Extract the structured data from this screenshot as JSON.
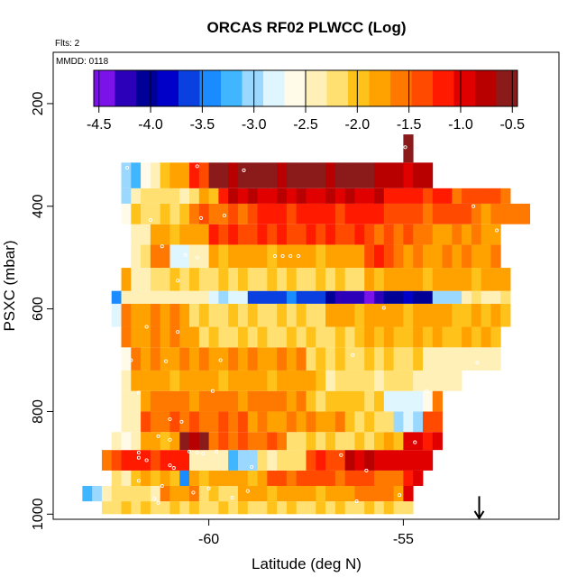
{
  "chart_data": {
    "type": "heatmap",
    "title": "ORCAS RF02 PLWCC (Log)",
    "flights_label": "Flts: 2",
    "date_label": "MMDD: 0118",
    "xlabel": "Latitude (deg N)",
    "ylabel": "PSXC (mbar)",
    "xlim": [
      -64.0,
      -51.0
    ],
    "ylim": [
      1010,
      100
    ],
    "x_ticks": [
      -60,
      -55
    ],
    "x_tick_labels": [
      "-60",
      "-55"
    ],
    "y_ticks": [
      200,
      400,
      600,
      800,
      1000
    ],
    "y_tick_labels": [
      "200",
      "400",
      "600",
      "800",
      "1000"
    ],
    "colorbar": {
      "range": [
        -4.55,
        -0.45
      ],
      "ticks": [
        -4.5,
        -4.0,
        -3.5,
        -3.0,
        -2.5,
        -2.0,
        -1.5,
        -1.0,
        -0.5
      ],
      "tick_labels": [
        "-4.5",
        "-4.0",
        "-3.5",
        "-3.0",
        "-2.5",
        "-2.0",
        "-1.5",
        "-1.0",
        "-0.5"
      ],
      "colors": [
        "#7b12ea",
        "#2b00b8",
        "#000096",
        "#0000c8",
        "#0a3fe0",
        "#1a8cff",
        "#3fb6ff",
        "#9ad8ff",
        "#e0f6ff",
        "#fffbe8",
        "#fff0b8",
        "#ffe070",
        "#ffc21a",
        "#ffa200",
        "#ff7800",
        "#ff4a00",
        "#ff1a00",
        "#e00000",
        "#b80000",
        "#8b1a1a"
      ]
    },
    "cell_width_deg": 0.25,
    "rows": [
      {
        "p_bottom": 1000,
        "p_top": 975,
        "segments": [
          {
            "x0": -62.75,
            "x1": -54.75,
            "v": -2.1
          }
        ]
      },
      {
        "p_bottom": 975,
        "p_top": 945,
        "segments": [
          {
            "x0": -63.25,
            "x1": -62.75,
            "v": -3.2
          },
          {
            "x0": -62.75,
            "x1": -61.25,
            "v": -2.2
          },
          {
            "x0": -61.25,
            "x1": -60.25,
            "v": -1.7
          },
          {
            "x0": -60.25,
            "x1": -59.25,
            "v": -2.1
          },
          {
            "x0": -59.25,
            "x1": -56.25,
            "v": -1.8
          },
          {
            "x0": -56.25,
            "x1": -55.0,
            "v": -1.6
          },
          {
            "x0": -55.0,
            "x1": -54.75,
            "v": -0.9
          }
        ]
      },
      {
        "p_bottom": 945,
        "p_top": 915,
        "segments": [
          {
            "x0": -62.5,
            "x1": -62.0,
            "v": -2.3
          },
          {
            "x0": -62.0,
            "x1": -60.75,
            "v": -1.9
          },
          {
            "x0": -60.75,
            "x1": -60.5,
            "v": -3.4
          },
          {
            "x0": -60.5,
            "x1": -58.5,
            "v": -1.8
          },
          {
            "x0": -58.5,
            "x1": -55.75,
            "v": -1.4
          },
          {
            "x0": -55.75,
            "x1": -55.0,
            "v": -1.6
          },
          {
            "x0": -55.0,
            "x1": -54.5,
            "v": -1.1
          }
        ]
      },
      {
        "p_bottom": 915,
        "p_top": 875,
        "segments": [
          {
            "x0": -62.75,
            "x1": -62.25,
            "v": -1.5
          },
          {
            "x0": -62.25,
            "x1": -60.5,
            "v": -1.2
          },
          {
            "x0": -60.5,
            "x1": -59.5,
            "v": -2.4
          },
          {
            "x0": -59.5,
            "x1": -58.75,
            "v": -3.1
          },
          {
            "x0": -58.75,
            "x1": -57.5,
            "v": -2.2
          },
          {
            "x0": -57.5,
            "x1": -56.5,
            "v": -1.3
          },
          {
            "x0": -56.5,
            "x1": -55.25,
            "v": -0.9
          },
          {
            "x0": -55.25,
            "x1": -54.25,
            "v": -1.0
          }
        ]
      },
      {
        "p_bottom": 875,
        "p_top": 840,
        "segments": [
          {
            "x0": -62.5,
            "x1": -61.75,
            "v": -2.5
          },
          {
            "x0": -61.75,
            "x1": -60.75,
            "v": -1.8
          },
          {
            "x0": -60.75,
            "x1": -60.0,
            "v": -0.7
          },
          {
            "x0": -60.0,
            "x1": -58.0,
            "v": -1.5
          },
          {
            "x0": -58.0,
            "x1": -55.5,
            "v": -2.1
          },
          {
            "x0": -55.5,
            "x1": -55.0,
            "v": -1.9
          },
          {
            "x0": -55.0,
            "x1": -54.0,
            "v": -1.0
          }
        ]
      },
      {
        "p_bottom": 840,
        "p_top": 800,
        "segments": [
          {
            "x0": -62.25,
            "x1": -61.75,
            "v": -2.4
          },
          {
            "x0": -61.75,
            "x1": -59.0,
            "v": -1.5
          },
          {
            "x0": -59.0,
            "x1": -56.5,
            "v": -1.7
          },
          {
            "x0": -56.5,
            "x1": -55.25,
            "v": -2.1
          },
          {
            "x0": -55.25,
            "x1": -54.5,
            "v": -3.0
          },
          {
            "x0": -54.5,
            "x1": -54.0,
            "v": -1.3
          }
        ]
      },
      {
        "p_bottom": 800,
        "p_top": 760,
        "segments": [
          {
            "x0": -62.25,
            "x1": -61.75,
            "v": -2.5
          },
          {
            "x0": -61.75,
            "x1": -57.5,
            "v": -1.6
          },
          {
            "x0": -57.5,
            "x1": -55.5,
            "v": -2.0
          },
          {
            "x0": -55.5,
            "x1": -54.25,
            "v": -2.8
          },
          {
            "x0": -54.25,
            "x1": -54.0,
            "v": -1.7
          }
        ]
      },
      {
        "p_bottom": 760,
        "p_top": 720,
        "segments": [
          {
            "x0": -62.25,
            "x1": -62.0,
            "v": -2.4
          },
          {
            "x0": -62.0,
            "x1": -57.0,
            "v": -1.8
          },
          {
            "x0": -57.0,
            "x1": -54.75,
            "v": -2.2
          },
          {
            "x0": -54.75,
            "x1": -53.5,
            "v": -2.4
          }
        ]
      },
      {
        "p_bottom": 720,
        "p_top": 675,
        "segments": [
          {
            "x0": -62.25,
            "x1": -62.0,
            "v": -2.6
          },
          {
            "x0": -62.0,
            "x1": -57.5,
            "v": -1.7
          },
          {
            "x0": -57.5,
            "x1": -54.5,
            "v": -2.1
          },
          {
            "x0": -54.5,
            "x1": -52.5,
            "v": -2.4
          }
        ]
      },
      {
        "p_bottom": 675,
        "p_top": 635,
        "segments": [
          {
            "x0": -62.25,
            "x1": -60.25,
            "v": -1.7
          },
          {
            "x0": -60.25,
            "x1": -56.0,
            "v": -2.1
          },
          {
            "x0": -56.0,
            "x1": -52.5,
            "v": -1.9
          }
        ]
      },
      {
        "p_bottom": 635,
        "p_top": 590,
        "segments": [
          {
            "x0": -62.5,
            "x1": -62.25,
            "v": -2.8
          },
          {
            "x0": -62.25,
            "x1": -60.5,
            "v": -1.7
          },
          {
            "x0": -60.5,
            "x1": -57.0,
            "v": -2.1
          },
          {
            "x0": -57.0,
            "x1": -53.5,
            "v": -1.8
          },
          {
            "x0": -53.5,
            "x1": -52.25,
            "v": -1.9
          }
        ]
      },
      {
        "p_bottom": 590,
        "p_top": 565,
        "segments": [
          {
            "x0": -62.5,
            "x1": -62.25,
            "v": -3.4
          },
          {
            "x0": -62.25,
            "x1": -60.0,
            "v": -2.4
          },
          {
            "x0": -60.0,
            "x1": -59.0,
            "v": -2.9
          },
          {
            "x0": -59.0,
            "x1": -57.0,
            "v": -3.6
          },
          {
            "x0": -57.0,
            "x1": -56.0,
            "v": -4.2
          },
          {
            "x0": -56.0,
            "x1": -55.5,
            "v": -4.4
          },
          {
            "x0": -55.5,
            "x1": -54.25,
            "v": -4.0
          },
          {
            "x0": -54.25,
            "x1": -53.5,
            "v": -3.0
          },
          {
            "x0": -53.5,
            "x1": -52.25,
            "v": -2.3
          }
        ]
      },
      {
        "p_bottom": 565,
        "p_top": 520,
        "segments": [
          {
            "x0": -62.25,
            "x1": -62.0,
            "v": -1.8
          },
          {
            "x0": -62.0,
            "x1": -61.5,
            "v": -2.5
          },
          {
            "x0": -61.5,
            "x1": -56.0,
            "v": -2.1
          },
          {
            "x0": -56.0,
            "x1": -52.25,
            "v": -1.8
          }
        ]
      },
      {
        "p_bottom": 520,
        "p_top": 475,
        "segments": [
          {
            "x0": -62.0,
            "x1": -61.5,
            "v": -2.3
          },
          {
            "x0": -61.5,
            "x1": -61.0,
            "v": -1.6
          },
          {
            "x0": -61.0,
            "x1": -60.5,
            "v": -2.9
          },
          {
            "x0": -60.5,
            "x1": -60.0,
            "v": -2.3
          },
          {
            "x0": -60.0,
            "x1": -56.0,
            "v": -1.8
          },
          {
            "x0": -56.0,
            "x1": -55.25,
            "v": -1.3
          },
          {
            "x0": -55.25,
            "x1": -52.5,
            "v": -1.7
          }
        ]
      },
      {
        "p_bottom": 475,
        "p_top": 435,
        "segments": [
          {
            "x0": -62.0,
            "x1": -61.5,
            "v": -2.4
          },
          {
            "x0": -61.5,
            "x1": -60.0,
            "v": -1.8
          },
          {
            "x0": -60.0,
            "x1": -55.75,
            "v": -1.3
          },
          {
            "x0": -55.75,
            "x1": -54.25,
            "v": -1.5
          },
          {
            "x0": -54.25,
            "x1": -52.5,
            "v": -1.7
          }
        ]
      },
      {
        "p_bottom": 435,
        "p_top": 395,
        "segments": [
          {
            "x0": -62.25,
            "x1": -62.0,
            "v": -2.6
          },
          {
            "x0": -62.0,
            "x1": -60.5,
            "v": -2.1
          },
          {
            "x0": -60.5,
            "x1": -58.75,
            "v": -1.5
          },
          {
            "x0": -58.75,
            "x1": -55.5,
            "v": -1.2
          },
          {
            "x0": -55.5,
            "x1": -53.0,
            "v": -1.4
          },
          {
            "x0": -53.0,
            "x1": -51.75,
            "v": -1.6
          }
        ]
      },
      {
        "p_bottom": 395,
        "p_top": 365,
        "segments": [
          {
            "x0": -62.25,
            "x1": -62.0,
            "v": -3.1
          },
          {
            "x0": -62.0,
            "x1": -60.25,
            "v": -2.2
          },
          {
            "x0": -60.25,
            "x1": -59.75,
            "v": -1.8
          },
          {
            "x0": -59.75,
            "x1": -59.5,
            "v": -1.2
          },
          {
            "x0": -59.5,
            "x1": -55.5,
            "v": -0.9
          },
          {
            "x0": -55.5,
            "x1": -53.75,
            "v": -1.2
          },
          {
            "x0": -53.75,
            "x1": -52.25,
            "v": -1.4
          }
        ]
      },
      {
        "p_bottom": 365,
        "p_top": 315,
        "segments": [
          {
            "x0": -62.25,
            "x1": -61.75,
            "v": -3.2
          },
          {
            "x0": -61.75,
            "x1": -61.25,
            "v": -2.6
          },
          {
            "x0": -61.25,
            "x1": -60.5,
            "v": -1.8
          },
          {
            "x0": -60.5,
            "x1": -60.0,
            "v": -1.3
          },
          {
            "x0": -60.0,
            "x1": -55.75,
            "v": -0.6
          },
          {
            "x0": -55.75,
            "x1": -54.25,
            "v": -0.8
          }
        ]
      },
      {
        "p_bottom": 315,
        "p_top": 260,
        "segments": [
          {
            "x0": -55.0,
            "x1": -54.75,
            "v": -0.5
          }
        ]
      }
    ],
    "markers": [
      {
        "lat": -62.1,
        "p": 325
      },
      {
        "lat": -60.3,
        "p": 322
      },
      {
        "lat": -59.1,
        "p": 330
      },
      {
        "lat": -54.95,
        "p": 285
      },
      {
        "lat": -61.5,
        "p": 427
      },
      {
        "lat": -60.2,
        "p": 423
      },
      {
        "lat": -59.6,
        "p": 418
      },
      {
        "lat": -53.2,
        "p": 400
      },
      {
        "lat": -52.6,
        "p": 447
      },
      {
        "lat": -61.2,
        "p": 478
      },
      {
        "lat": -60.6,
        "p": 495
      },
      {
        "lat": -60.3,
        "p": 500
      },
      {
        "lat": -58.3,
        "p": 497
      },
      {
        "lat": -58.1,
        "p": 497
      },
      {
        "lat": -57.9,
        "p": 497
      },
      {
        "lat": -57.7,
        "p": 497
      },
      {
        "lat": -60.8,
        "p": 545
      },
      {
        "lat": -55.5,
        "p": 598
      },
      {
        "lat": -61.6,
        "p": 635
      },
      {
        "lat": -60.8,
        "p": 645
      },
      {
        "lat": -62.0,
        "p": 700
      },
      {
        "lat": -61.1,
        "p": 702
      },
      {
        "lat": -59.7,
        "p": 700
      },
      {
        "lat": -56.3,
        "p": 690
      },
      {
        "lat": -53.1,
        "p": 705
      },
      {
        "lat": -61.8,
        "p": 763
      },
      {
        "lat": -59.9,
        "p": 760
      },
      {
        "lat": -54.4,
        "p": 760
      },
      {
        "lat": -53.3,
        "p": 783
      },
      {
        "lat": -61.0,
        "p": 815
      },
      {
        "lat": -60.7,
        "p": 820
      },
      {
        "lat": -61.3,
        "p": 848
      },
      {
        "lat": -61.0,
        "p": 855
      },
      {
        "lat": -61.8,
        "p": 880
      },
      {
        "lat": -54.7,
        "p": 860
      },
      {
        "lat": -60.5,
        "p": 878
      },
      {
        "lat": -60.3,
        "p": 880
      },
      {
        "lat": -60.15,
        "p": 882
      },
      {
        "lat": -59.8,
        "p": 878
      },
      {
        "lat": -56.6,
        "p": 885
      },
      {
        "lat": -61.8,
        "p": 890
      },
      {
        "lat": -61.6,
        "p": 895
      },
      {
        "lat": -61.0,
        "p": 905
      },
      {
        "lat": -60.9,
        "p": 910
      },
      {
        "lat": -58.9,
        "p": 908
      },
      {
        "lat": -55.95,
        "p": 915
      },
      {
        "lat": -62.8,
        "p": 930
      },
      {
        "lat": -61.8,
        "p": 935
      },
      {
        "lat": -61.2,
        "p": 945
      },
      {
        "lat": -60.4,
        "p": 958
      },
      {
        "lat": -60.0,
        "p": 950
      },
      {
        "lat": -59.0,
        "p": 955
      },
      {
        "lat": -55.1,
        "p": 963
      },
      {
        "lat": -61.4,
        "p": 970
      },
      {
        "lat": -61.3,
        "p": 978
      },
      {
        "lat": -59.4,
        "p": 968
      },
      {
        "lat": -56.2,
        "p": 975
      }
    ],
    "arrow": {
      "lat": -53.05,
      "p_from": 965,
      "p_to": 1008
    }
  }
}
